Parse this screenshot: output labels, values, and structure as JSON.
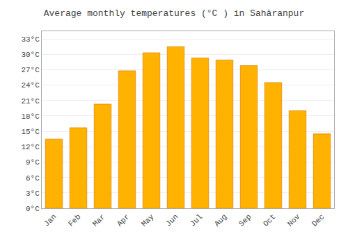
{
  "chart_data": {
    "type": "bar",
    "title": "Average monthly temperatures (°C ) in Sahāranpur",
    "categories": [
      "Jan",
      "Feb",
      "Mar",
      "Apr",
      "May",
      "Jun",
      "Jul",
      "Aug",
      "Sep",
      "Oct",
      "Nov",
      "Dec"
    ],
    "values": [
      13.5,
      15.7,
      20.3,
      26.8,
      30.3,
      31.5,
      29.3,
      28.9,
      27.8,
      24.5,
      19.0,
      14.5
    ],
    "color": "#FFB300",
    "ylim": [
      0,
      34.5
    ],
    "yticks": [
      {
        "value": 0,
        "label": "0°C"
      },
      {
        "value": 3,
        "label": "3°C"
      },
      {
        "value": 6,
        "label": "6°C"
      },
      {
        "value": 9,
        "label": "9°C"
      },
      {
        "value": 12,
        "label": "12°C"
      },
      {
        "value": 15,
        "label": "15°C"
      },
      {
        "value": 18,
        "label": "18°C"
      },
      {
        "value": 21,
        "label": "21°C"
      },
      {
        "value": 24,
        "label": "24°C"
      },
      {
        "value": 27,
        "label": "27°C"
      },
      {
        "value": 30,
        "label": "30°C"
      },
      {
        "value": 33,
        "label": "33°C"
      }
    ],
    "grid": true
  }
}
